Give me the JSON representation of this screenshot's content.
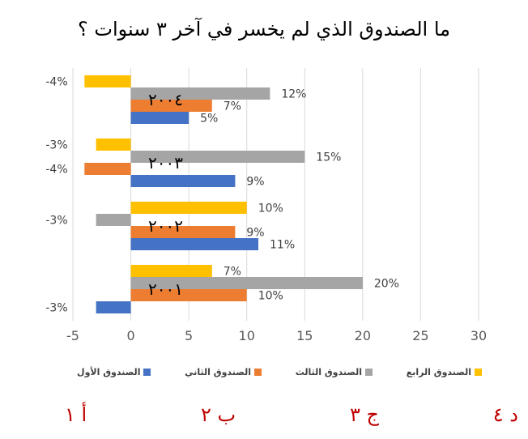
{
  "title": "ما الصندوق الذي لم يخسر في آخر ٣ سنوات ؟",
  "chart_data": {
    "type": "bar",
    "orientation": "horizontal",
    "title": "ما الصندوق الذي لم يخسر في آخر ٣ سنوات ؟",
    "categories": [
      "٢٠٠١",
      "٢٠٠٢",
      "٢٠٠٣",
      "٢٠٠٤"
    ],
    "series": [
      {
        "name": "الصندوق الأول",
        "color": "#4472c4",
        "values": [
          -3,
          11,
          9,
          5
        ]
      },
      {
        "name": "الصندوق الثاني",
        "color": "#ed7d31",
        "values": [
          10,
          9,
          -4,
          7
        ]
      },
      {
        "name": "الصندوق الثالث",
        "color": "#a5a5a5",
        "values": [
          20,
          -3,
          15,
          12
        ]
      },
      {
        "name": "الصندوق الرابع",
        "color": "#ffc000",
        "values": [
          7,
          10,
          -3,
          -4
        ]
      }
    ],
    "xlim": [
      -5,
      30
    ],
    "x_ticks": [
      -5,
      0,
      5,
      10,
      15,
      20,
      25,
      30
    ],
    "grid": true,
    "legend_position": "bottom",
    "data_label_suffix": "%"
  },
  "answers": [
    "أ ١",
    "ب ٢",
    "ج ٣",
    "د ٤"
  ]
}
